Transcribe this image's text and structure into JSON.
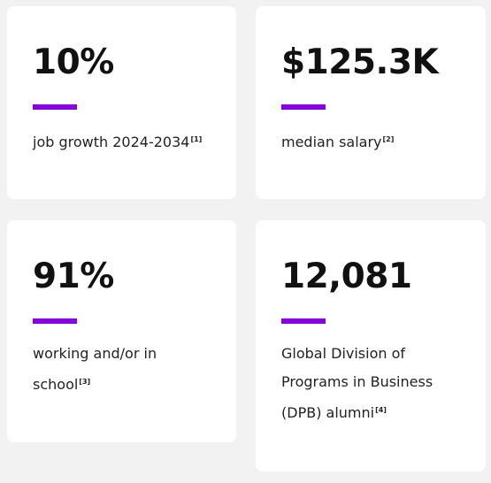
{
  "cards": [
    {
      "stat": "10%",
      "label": "job growth 2024-2034",
      "ref": "[1]"
    },
    {
      "stat": "$125.3K",
      "label": "median salary",
      "ref": "[2]"
    },
    {
      "stat": "91%",
      "label": "working and/or in school",
      "ref": "[3]"
    },
    {
      "stat": "12,081",
      "label": "Global Division of Programs in Business (DPB) alumni",
      "ref": "[4]"
    }
  ]
}
